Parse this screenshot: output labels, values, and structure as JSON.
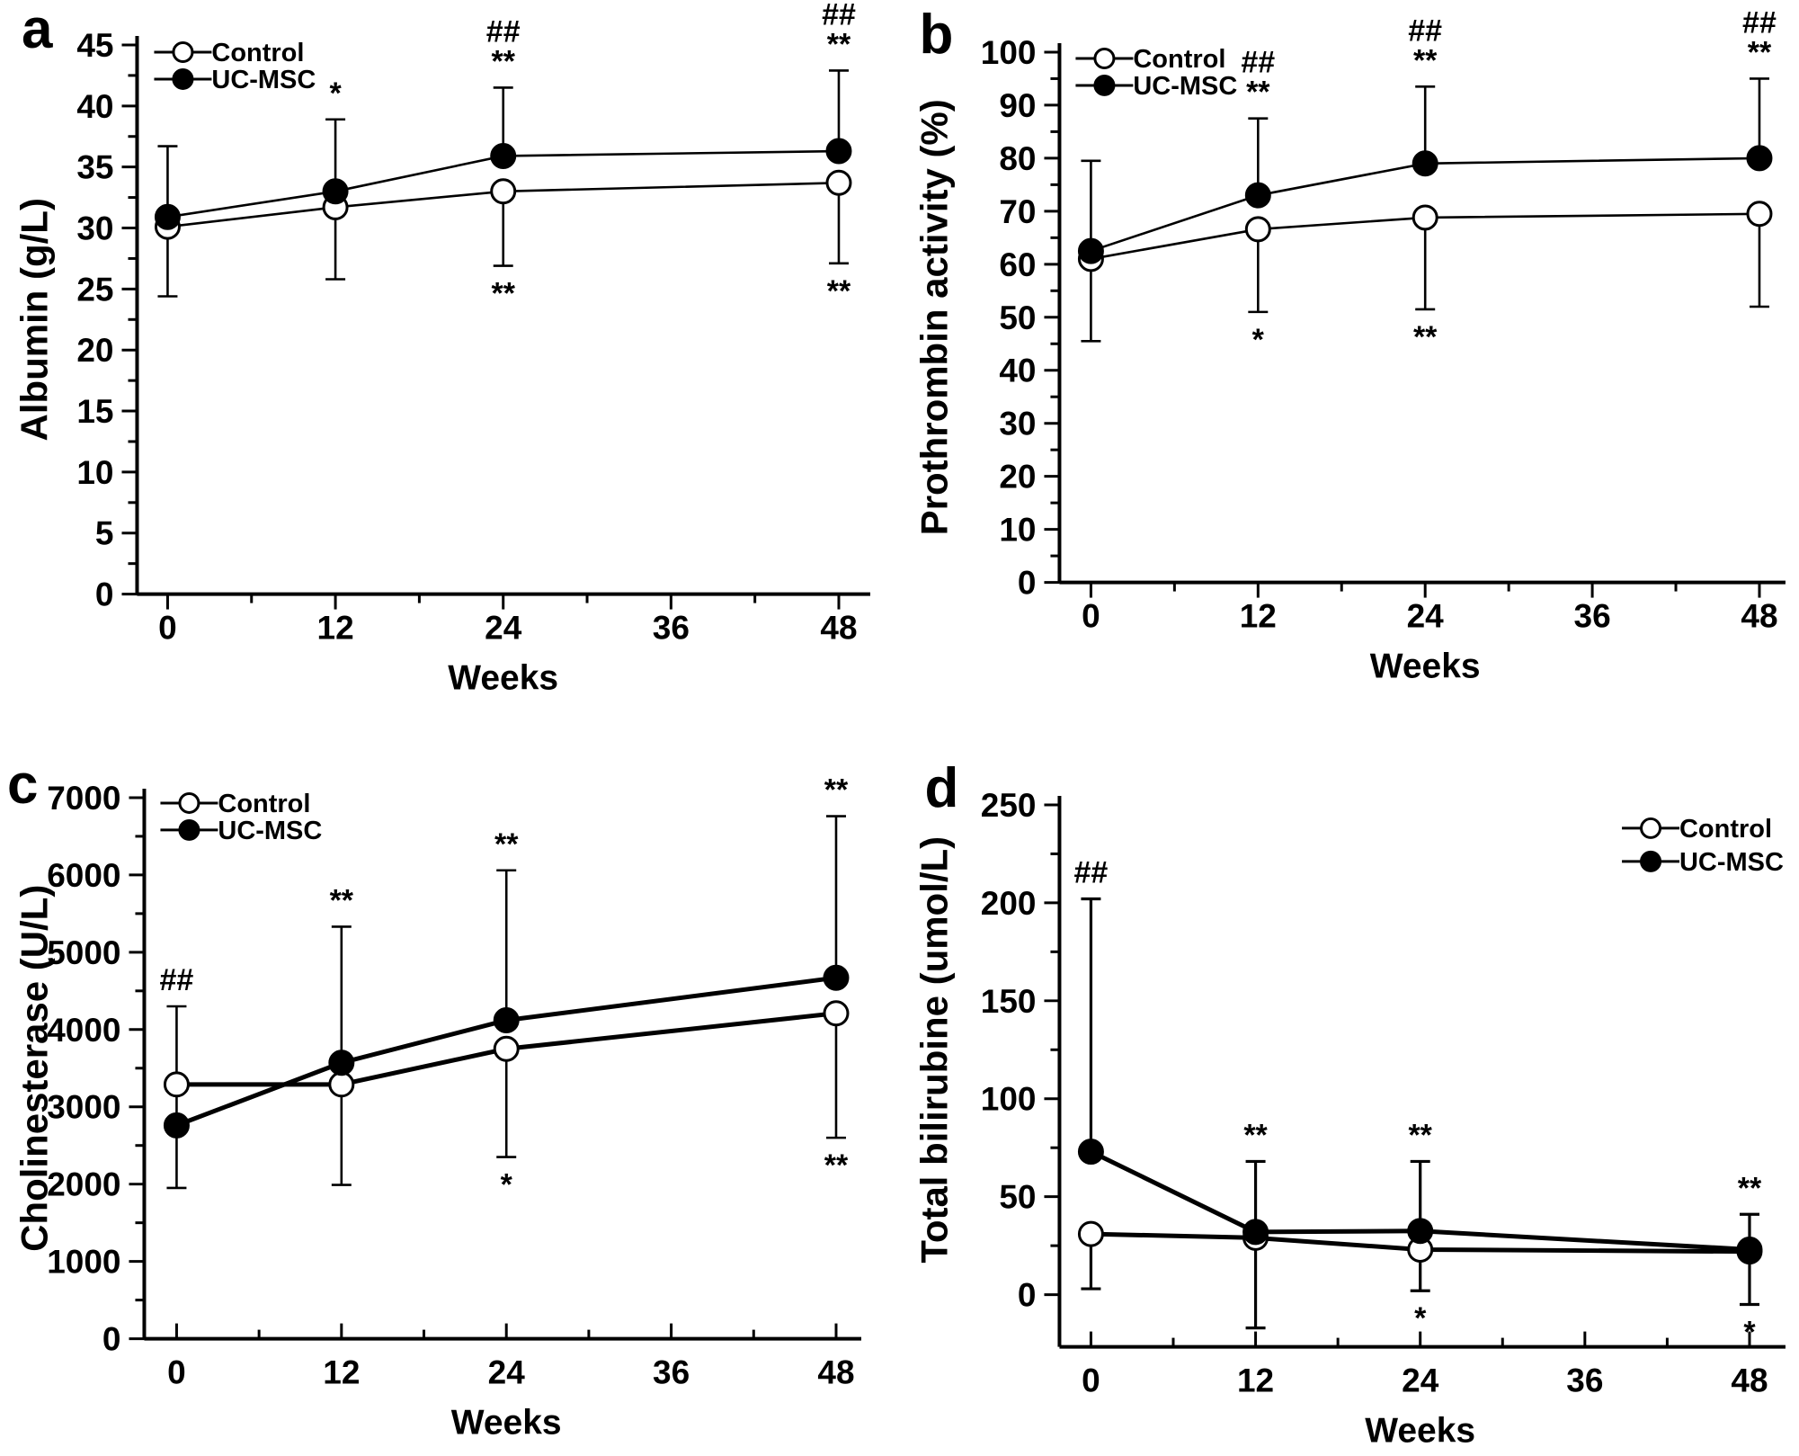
{
  "figure": {
    "description": "Four-panel line chart figure comparing Control and UC-MSC groups over 48 weeks",
    "series_colors": {
      "line": "#000000",
      "open_marker_fill": "#ffffff",
      "filled_marker_fill": "#000000"
    }
  },
  "chart_data": [
    {
      "type": "line",
      "panel": "a",
      "ylabel": "Albumin (g/L)",
      "xlabel": "Weeks",
      "xlim": [
        0,
        48
      ],
      "ylim": [
        0,
        45
      ],
      "x_major_ticks": [
        0,
        12,
        24,
        36,
        48
      ],
      "x_minor_ticks": [
        6,
        18,
        30,
        42
      ],
      "y_major_step": 5,
      "y_minor_step": 2.5,
      "legend": {
        "position": "top-left",
        "items": [
          {
            "label": "Control",
            "marker": "open"
          },
          {
            "label": "UC-MSC",
            "marker": "filled"
          }
        ]
      },
      "series": [
        {
          "name": "Control",
          "marker": "open",
          "x": [
            0,
            12,
            24,
            48
          ],
          "y": [
            30.1,
            31.7,
            33.0,
            33.7
          ],
          "err_up": [
            null,
            null,
            null,
            null
          ],
          "err_down": [
            24.4,
            25.8,
            26.9,
            27.1
          ]
        },
        {
          "name": "UC-MSC",
          "marker": "filled",
          "x": [
            0,
            12,
            24,
            48
          ],
          "y": [
            30.9,
            33.0,
            35.9,
            36.3
          ],
          "err_up": [
            36.7,
            38.9,
            41.5,
            42.9
          ],
          "err_down": [
            null,
            null,
            null,
            null
          ]
        }
      ],
      "annotations": [
        {
          "x": 12,
          "pos": "above",
          "anchor": 38.9,
          "lines": [
            "*"
          ]
        },
        {
          "x": 24,
          "pos": "above",
          "anchor": 41.5,
          "lines": [
            "##",
            "**"
          ]
        },
        {
          "x": 24,
          "pos": "below",
          "anchor": 26.9,
          "lines": [
            "**"
          ]
        },
        {
          "x": 48,
          "pos": "above",
          "anchor": 42.9,
          "lines": [
            "##",
            "**"
          ]
        },
        {
          "x": 48,
          "pos": "below",
          "anchor": 27.1,
          "lines": [
            "**"
          ]
        }
      ]
    },
    {
      "type": "line",
      "panel": "b",
      "ylabel": "Prothrombin activity (%)",
      "xlabel": "Weeks",
      "xlim": [
        0,
        48
      ],
      "ylim": [
        0,
        100
      ],
      "x_major_ticks": [
        0,
        12,
        24,
        36,
        48
      ],
      "x_minor_ticks": [
        6,
        18,
        30,
        42
      ],
      "y_major_step": 10,
      "y_minor_step": 5,
      "legend": {
        "position": "top-left",
        "items": [
          {
            "label": "Control",
            "marker": "open"
          },
          {
            "label": "UC-MSC",
            "marker": "filled"
          }
        ]
      },
      "series": [
        {
          "name": "Control",
          "marker": "open",
          "x": [
            0,
            12,
            24,
            48
          ],
          "y": [
            61,
            66.6,
            68.8,
            69.5
          ],
          "err_up": [
            null,
            null,
            null,
            null
          ],
          "err_down": [
            45.5,
            51,
            51.5,
            52
          ]
        },
        {
          "name": "UC-MSC",
          "marker": "filled",
          "x": [
            0,
            12,
            24,
            48
          ],
          "y": [
            62.5,
            73,
            79,
            80
          ],
          "err_up": [
            79.5,
            87.5,
            93.5,
            95
          ],
          "err_down": [
            null,
            null,
            null,
            null
          ]
        }
      ],
      "annotations": [
        {
          "x": 12,
          "pos": "above",
          "anchor": 87.5,
          "lines": [
            "##",
            "**"
          ]
        },
        {
          "x": 12,
          "pos": "below",
          "anchor": 51,
          "lines": [
            "*"
          ]
        },
        {
          "x": 24,
          "pos": "above",
          "anchor": 93.5,
          "lines": [
            "##",
            "**"
          ]
        },
        {
          "x": 24,
          "pos": "below",
          "anchor": 51.5,
          "lines": [
            "**"
          ]
        },
        {
          "x": 48,
          "pos": "above",
          "anchor": 95,
          "lines": [
            "##",
            "**"
          ]
        }
      ]
    },
    {
      "type": "line",
      "panel": "c",
      "ylabel": "Cholinesterase (U/L)",
      "xlabel": "Weeks",
      "xlim": [
        0,
        48
      ],
      "ylim": [
        0,
        7000
      ],
      "x_major_ticks": [
        0,
        12,
        24,
        36,
        48
      ],
      "x_minor_ticks": [
        6,
        18,
        30,
        42
      ],
      "y_major_step": 1000,
      "y_minor_step": 500,
      "legend": {
        "position": "top-left",
        "items": [
          {
            "label": "Control",
            "marker": "open"
          },
          {
            "label": "UC-MSC",
            "marker": "filled"
          }
        ]
      },
      "series": [
        {
          "name": "Control",
          "marker": "open",
          "x": [
            0,
            12,
            24,
            48
          ],
          "y": [
            3290,
            3290,
            3750,
            4210
          ],
          "err_up": [
            4300,
            null,
            null,
            null
          ],
          "err_down": [
            1950,
            1990,
            2350,
            2600
          ]
        },
        {
          "name": "UC-MSC",
          "marker": "filled",
          "x": [
            0,
            12,
            24,
            48
          ],
          "y": [
            2760,
            3570,
            4120,
            4670
          ],
          "err_up": [
            null,
            5330,
            6060,
            6760
          ],
          "err_down": [
            null,
            null,
            null,
            null
          ]
        }
      ],
      "annotations": [
        {
          "x": 0,
          "pos": "above",
          "anchor": 4300,
          "lines": [
            "##"
          ]
        },
        {
          "x": 12,
          "pos": "above",
          "anchor": 5330,
          "lines": [
            "**"
          ]
        },
        {
          "x": 24,
          "pos": "above",
          "anchor": 6060,
          "lines": [
            "**"
          ]
        },
        {
          "x": 24,
          "pos": "below",
          "anchor": 2350,
          "lines": [
            "*"
          ]
        },
        {
          "x": 48,
          "pos": "above",
          "anchor": 6760,
          "lines": [
            "**"
          ]
        },
        {
          "x": 48,
          "pos": "below",
          "anchor": 2600,
          "lines": [
            "**"
          ]
        }
      ]
    },
    {
      "type": "line",
      "panel": "d",
      "ylabel": "Total bilirubine (umol/L)",
      "xlabel": "Weeks",
      "xlim": [
        0,
        48
      ],
      "ylim": [
        0,
        250
      ],
      "x_major_ticks": [
        0,
        12,
        24,
        36,
        48
      ],
      "x_minor_ticks": [
        6,
        18,
        30,
        42
      ],
      "y_major_step": 50,
      "y_minor_step": 25,
      "legend": {
        "position": "top-right",
        "items": [
          {
            "label": "Control",
            "marker": "open"
          },
          {
            "label": "UC-MSC",
            "marker": "filled"
          }
        ]
      },
      "series": [
        {
          "name": "Control",
          "marker": "open",
          "x": [
            0,
            12,
            24,
            48
          ],
          "y": [
            31,
            29,
            23,
            22
          ],
          "err_up": [
            null,
            null,
            null,
            null
          ],
          "err_down": [
            3,
            -17,
            2,
            -5
          ]
        },
        {
          "name": "UC-MSC",
          "marker": "filled",
          "x": [
            0,
            12,
            24,
            48
          ],
          "y": [
            73,
            32,
            32.5,
            23
          ],
          "err_up": [
            202,
            68,
            68,
            41
          ],
          "err_down": [
            null,
            null,
            null,
            null
          ]
        }
      ],
      "annotations": [
        {
          "x": 0,
          "pos": "above",
          "anchor": 202,
          "lines": [
            "##"
          ]
        },
        {
          "x": 12,
          "pos": "above",
          "anchor": 68,
          "lines": [
            "**"
          ]
        },
        {
          "x": 24,
          "pos": "above",
          "anchor": 68,
          "lines": [
            "**"
          ]
        },
        {
          "x": 24,
          "pos": "below",
          "anchor": 2,
          "lines": [
            "*"
          ]
        },
        {
          "x": 48,
          "pos": "above",
          "anchor": 41,
          "lines": [
            "**"
          ]
        },
        {
          "x": 48,
          "pos": "below",
          "anchor": -5,
          "lines": [
            "*"
          ]
        }
      ]
    }
  ]
}
